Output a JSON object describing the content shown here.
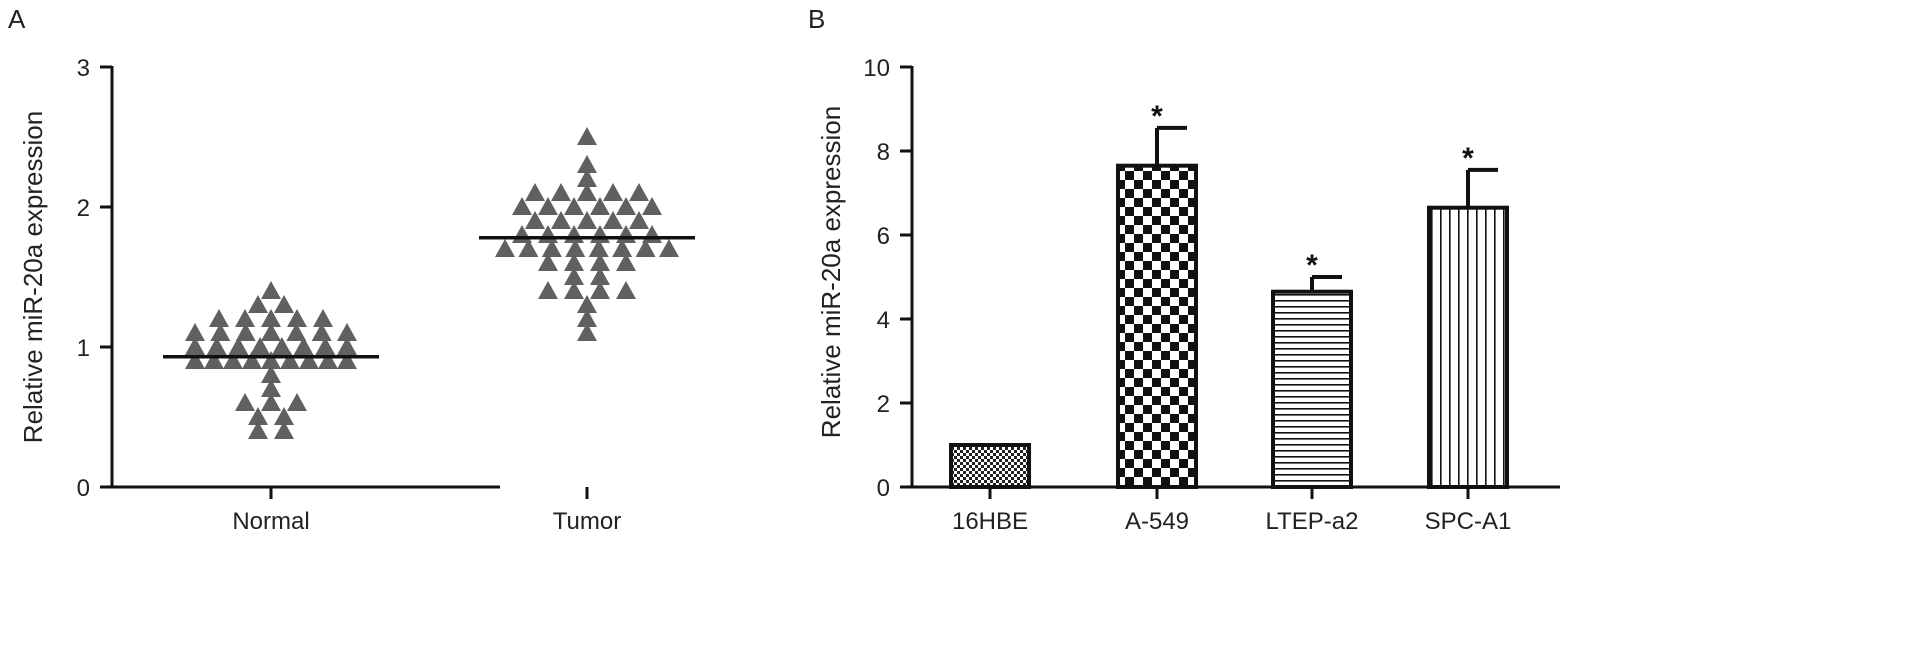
{
  "chart_data": [
    {
      "panel": "A",
      "type": "scatter",
      "ylabel": "Relative miR-20a expression",
      "ylim": [
        0,
        3
      ],
      "yticks": [
        "0",
        "1",
        "2",
        "3"
      ],
      "categories": [
        "Normal",
        "Tumor"
      ],
      "marker": "triangle",
      "color": "#606060",
      "series": [
        {
          "category": "Normal",
          "mean": 0.93,
          "points": [
            0.9,
            0.9,
            1.0,
            1.0,
            1.1,
            1.2,
            1.3,
            1.0,
            0.9,
            1.1,
            1.0,
            0.9,
            1.2,
            1.1,
            1.0,
            0.9,
            1.3,
            1.4,
            1.2,
            1.1,
            1.0,
            0.9,
            1.0,
            1.1,
            1.2,
            0.9,
            1.0,
            1.1,
            1.2,
            1.1,
            0.9,
            0.9,
            0.6,
            0.5,
            0.4,
            0.4,
            0.6,
            0.6,
            0.8,
            0.7,
            0.5
          ]
        },
        {
          "category": "Tumor",
          "mean": 1.78,
          "points": [
            2.2,
            2.0,
            1.9,
            1.7,
            1.6,
            1.4,
            2.1,
            2.0,
            1.8,
            1.7,
            1.6,
            1.4,
            2.1,
            1.9,
            1.7,
            2.3,
            2.5,
            2.1,
            2.0,
            1.9,
            1.8,
            1.8,
            1.7,
            1.6,
            1.4,
            1.3,
            2.0,
            1.9,
            1.8,
            1.7,
            1.5,
            1.1,
            2.1,
            2.0,
            1.8,
            1.7,
            1.6,
            1.2,
            1.5,
            2.1,
            1.9,
            1.8,
            1.7,
            1.4,
            2.0,
            1.7
          ]
        }
      ]
    },
    {
      "panel": "B",
      "type": "bar",
      "ylabel": "Relative miR-20a expression",
      "ylim": [
        0,
        10
      ],
      "yticks": [
        "0",
        "2",
        "4",
        "6",
        "8",
        "10"
      ],
      "categories": [
        "16HBE",
        "A-549",
        "LTEP-a2",
        "SPC-A1"
      ],
      "values": [
        1.0,
        7.65,
        4.65,
        6.65
      ],
      "errors": [
        0,
        0.9,
        0.35,
        0.9
      ],
      "significance": [
        "",
        "*",
        "*",
        "*"
      ],
      "patterns": [
        "fine-checker",
        "checker",
        "horizontal-lines",
        "vertical-lines"
      ]
    }
  ]
}
